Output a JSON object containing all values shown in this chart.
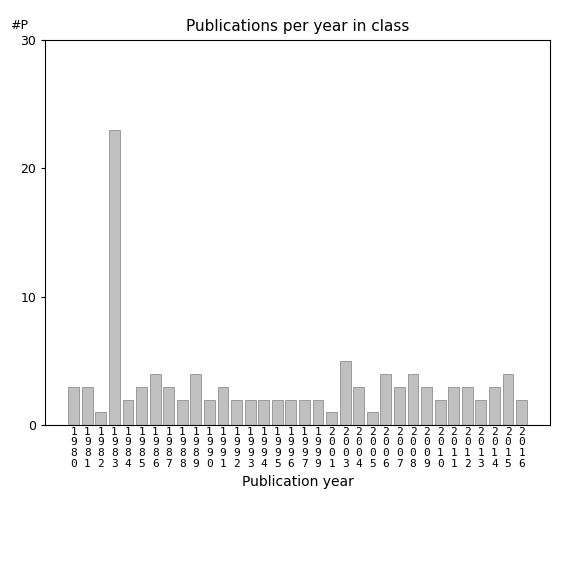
{
  "title": "Publications per year in class",
  "xlabel": "Publication year",
  "ylabel": "#P",
  "bar_color": "#c0c0c0",
  "bar_edgecolor": "#808080",
  "ylim": [
    0,
    30
  ],
  "yticks": [
    0,
    10,
    20,
    30
  ],
  "years": [
    "1980",
    "1981",
    "1982",
    "1983",
    "1984",
    "1985",
    "1986",
    "1987",
    "1988",
    "1989",
    "1990",
    "1991",
    "1992",
    "1993",
    "1994",
    "1995",
    "1996",
    "1997",
    "1999",
    "2001",
    "2003",
    "2004",
    "2005",
    "2006",
    "2007",
    "2008",
    "2009",
    "2010",
    "2011",
    "2012",
    "2013",
    "2014",
    "2015",
    "2016"
  ],
  "values": [
    3,
    3,
    1,
    23,
    2,
    3,
    4,
    3,
    2,
    4,
    2,
    3,
    2,
    2,
    2,
    2,
    2,
    2,
    2,
    1,
    5,
    3,
    1,
    4,
    3,
    4,
    3,
    2,
    3,
    3,
    2,
    3,
    4,
    2
  ],
  "title_fontsize": 11,
  "xlabel_fontsize": 10,
  "tick_label_fontsize": 8,
  "ytick_fontsize": 9
}
